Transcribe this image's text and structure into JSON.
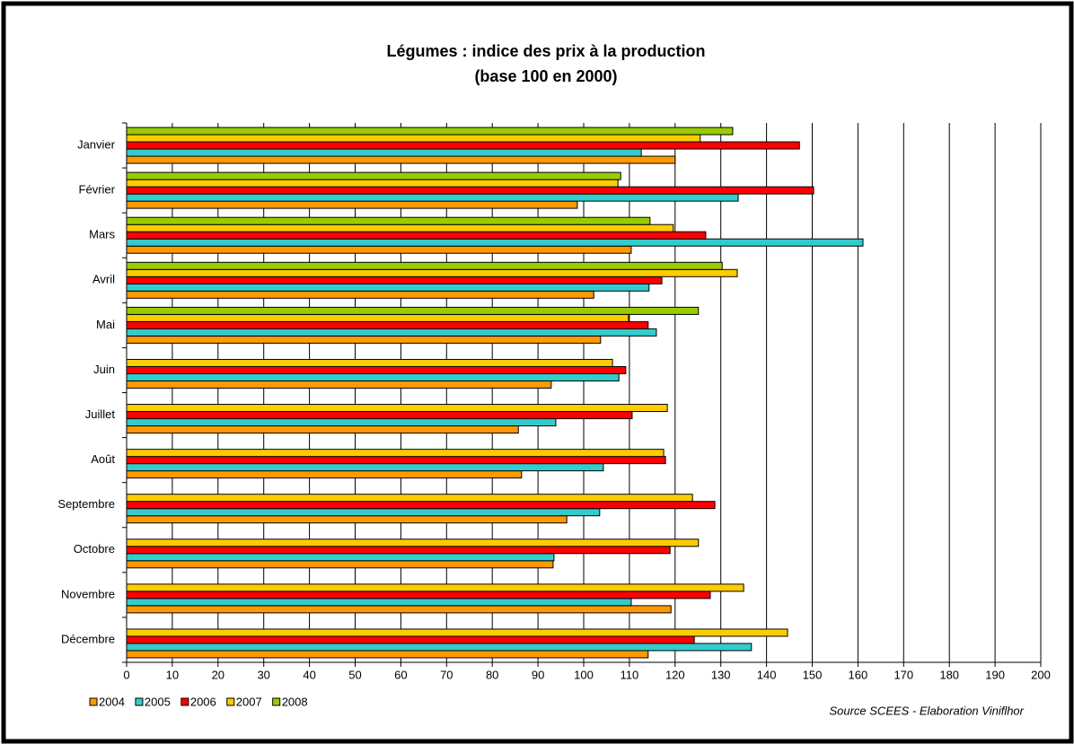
{
  "chart_data": {
    "type": "hbar",
    "title": "Légumes : indice des prix à la production",
    "subtitle": "(base 100 en 2000)",
    "source": "Source SCEES - Elaboration Viniflhor",
    "categories": [
      "Janvier",
      "Février",
      "Mars",
      "Avril",
      "Mai",
      "Juin",
      "Juillet",
      "Août",
      "Septembre",
      "Octobre",
      "Novembre",
      "Décembre"
    ],
    "series": [
      {
        "name": "2004",
        "color": "#ff9900",
        "values": [
          120.0,
          98.6,
          110.4,
          102.2,
          103.7,
          92.9,
          85.7,
          86.4,
          96.3,
          93.3,
          119.1,
          114.1
        ]
      },
      {
        "name": "2005",
        "color": "#33cccc",
        "values": [
          112.6,
          133.8,
          161.1,
          114.3,
          115.9,
          107.7,
          93.9,
          104.3,
          103.5,
          93.5,
          110.4,
          136.7
        ]
      },
      {
        "name": "2006",
        "color": "#ff0000",
        "values": [
          147.2,
          150.3,
          126.7,
          117.1,
          114.1,
          109.2,
          110.6,
          117.9,
          128.7,
          118.9,
          127.7,
          124.2
        ]
      },
      {
        "name": "2007",
        "color": "#ffcc00",
        "values": [
          125.5,
          107.5,
          119.6,
          133.6,
          109.8,
          106.3,
          118.3,
          117.5,
          123.8,
          125.1,
          135.0,
          144.6
        ]
      },
      {
        "name": "2008",
        "color": "#99cc00",
        "values": [
          132.6,
          108.1,
          114.5,
          130.3,
          125.1,
          null,
          null,
          null,
          null,
          null,
          null,
          null
        ]
      }
    ],
    "xlim": [
      0,
      200
    ],
    "xticks": [
      0,
      10,
      20,
      30,
      40,
      50,
      60,
      70,
      80,
      90,
      100,
      110,
      120,
      130,
      140,
      150,
      160,
      170,
      180,
      190,
      200
    ],
    "grid": true,
    "legend": "bottom-left"
  }
}
